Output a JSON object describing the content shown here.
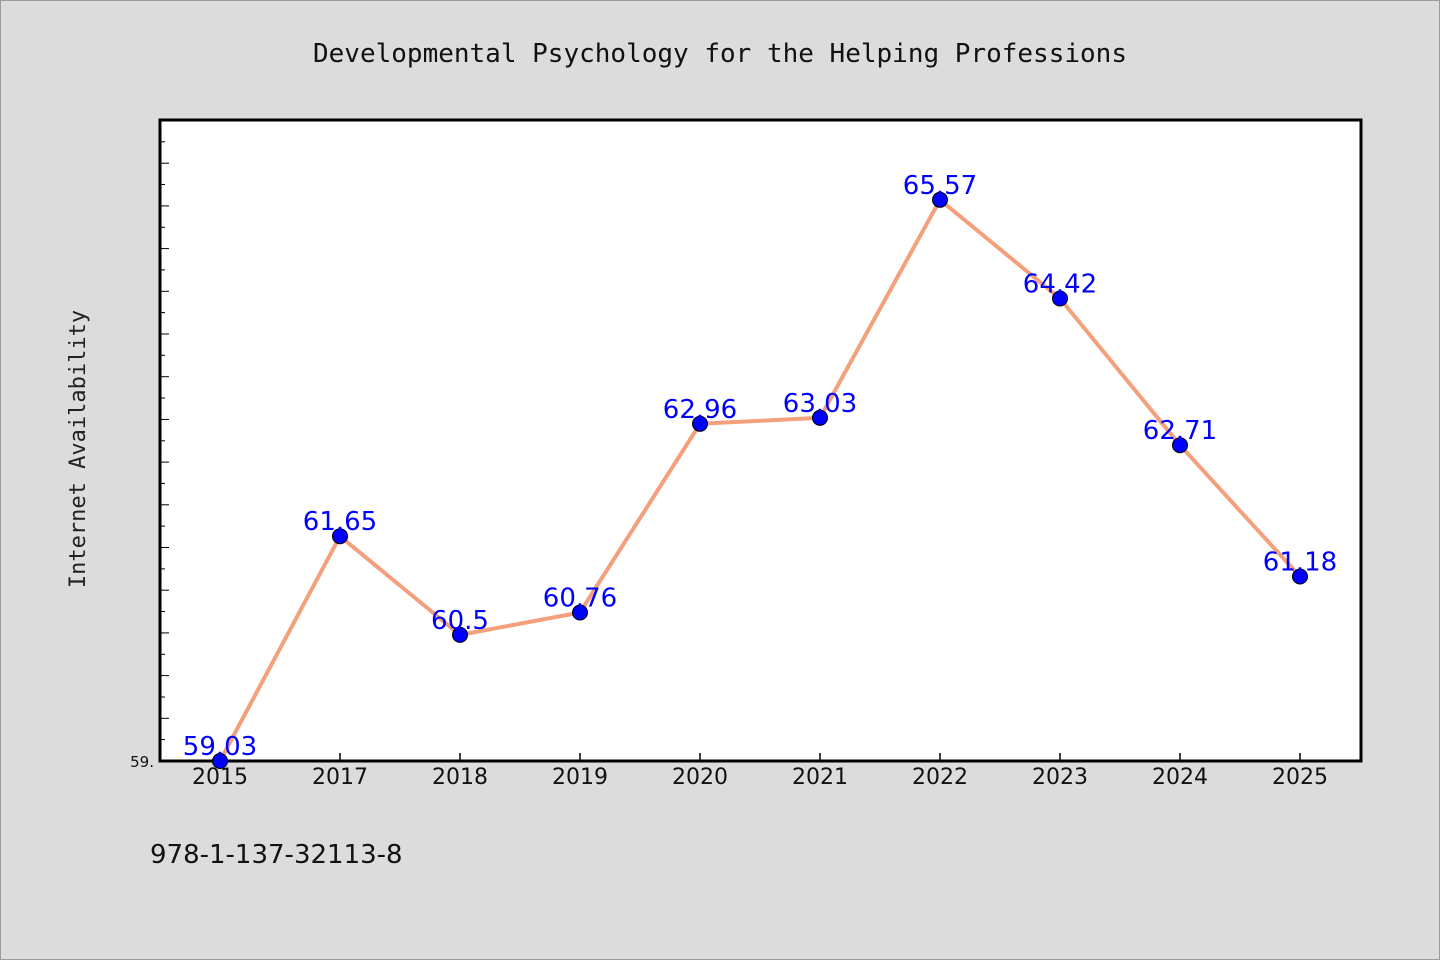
{
  "chart_data": {
    "type": "line",
    "title": "Developmental Psychology for the Helping Professions",
    "ylabel": "Internet Availability",
    "xlabel": "",
    "categories": [
      "2015",
      "2017",
      "2018",
      "2019",
      "2020",
      "2021",
      "2022",
      "2023",
      "2024",
      "2025"
    ],
    "series": [
      {
        "values": [
          59.03,
          61.65,
          60.5,
          60.76,
          62.96,
          63.03,
          65.57,
          64.42,
          62.71,
          61.18
        ],
        "labels": [
          "59.03",
          "61.65",
          "60.5",
          "60.76",
          "62.96",
          "63.03",
          "65.57",
          "64.42",
          "62.71",
          "61.18"
        ]
      }
    ],
    "ylim": [
      59.03,
      66.5
    ],
    "y_tick_label": "59.",
    "grid": false,
    "line_color": "#f4a07c",
    "marker_color": "#0000ff",
    "label_color": "#0000ff"
  },
  "footer": {
    "isbn": "978-1-137-32113-8"
  },
  "colors": {
    "background": "#dcdcdc",
    "plot_background": "#ffffff"
  }
}
